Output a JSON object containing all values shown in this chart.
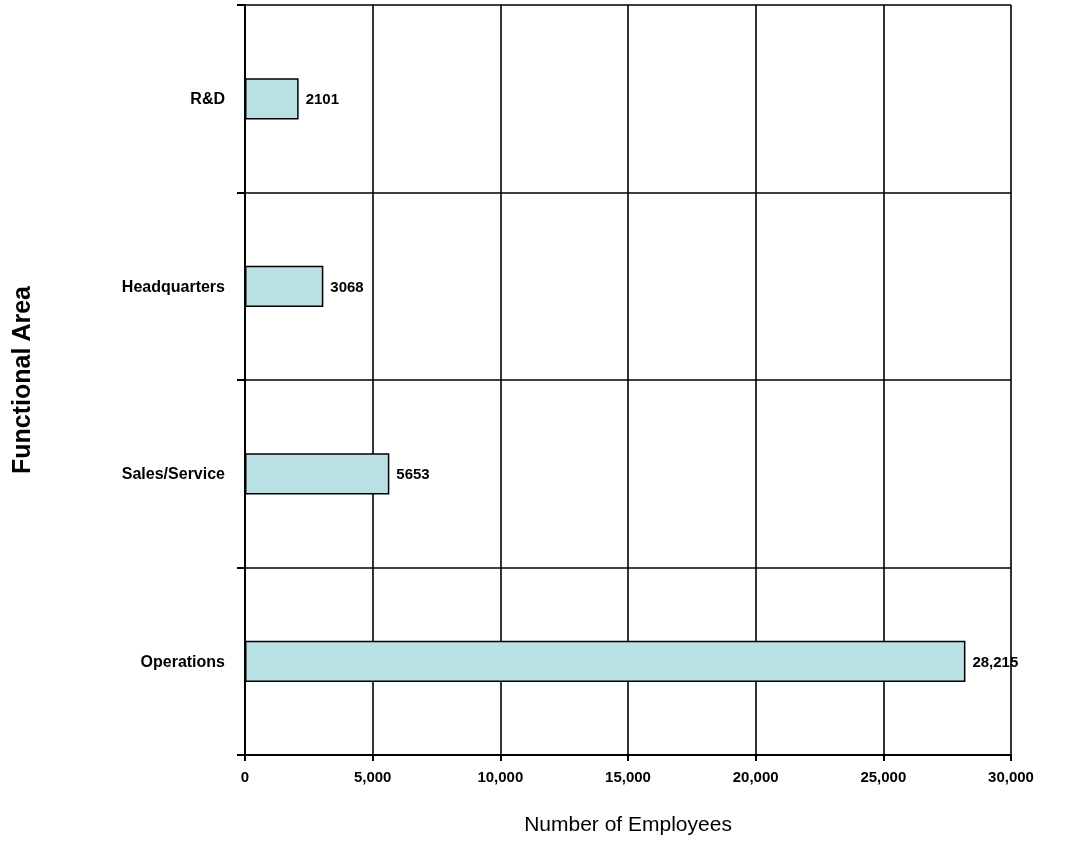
{
  "chart_data": {
    "type": "bar",
    "orientation": "horizontal",
    "categories": [
      "R&D",
      "Headquarters",
      "Sales/Service",
      "Operations"
    ],
    "values": [
      2101,
      3068,
      5653,
      28215
    ],
    "value_labels": [
      "2101",
      "3068",
      "5653",
      "28,215"
    ],
    "color": "#b9e0e2",
    "xlabel": "Number of Employees",
    "ylabel": "Functional Area",
    "xlim": [
      0,
      30000
    ],
    "xticks": [
      0,
      {
        "value": 5000,
        "label": "5,000"
      },
      {
        "value": 10000,
        "label": "10,000"
      },
      {
        "value": 15000,
        "label": "15,000"
      },
      {
        "value": 20000,
        "label": "20,000"
      },
      {
        "value": 25000,
        "label": "25,000"
      },
      {
        "value": 30000,
        "label": "30,000"
      }
    ],
    "grid": true
  }
}
